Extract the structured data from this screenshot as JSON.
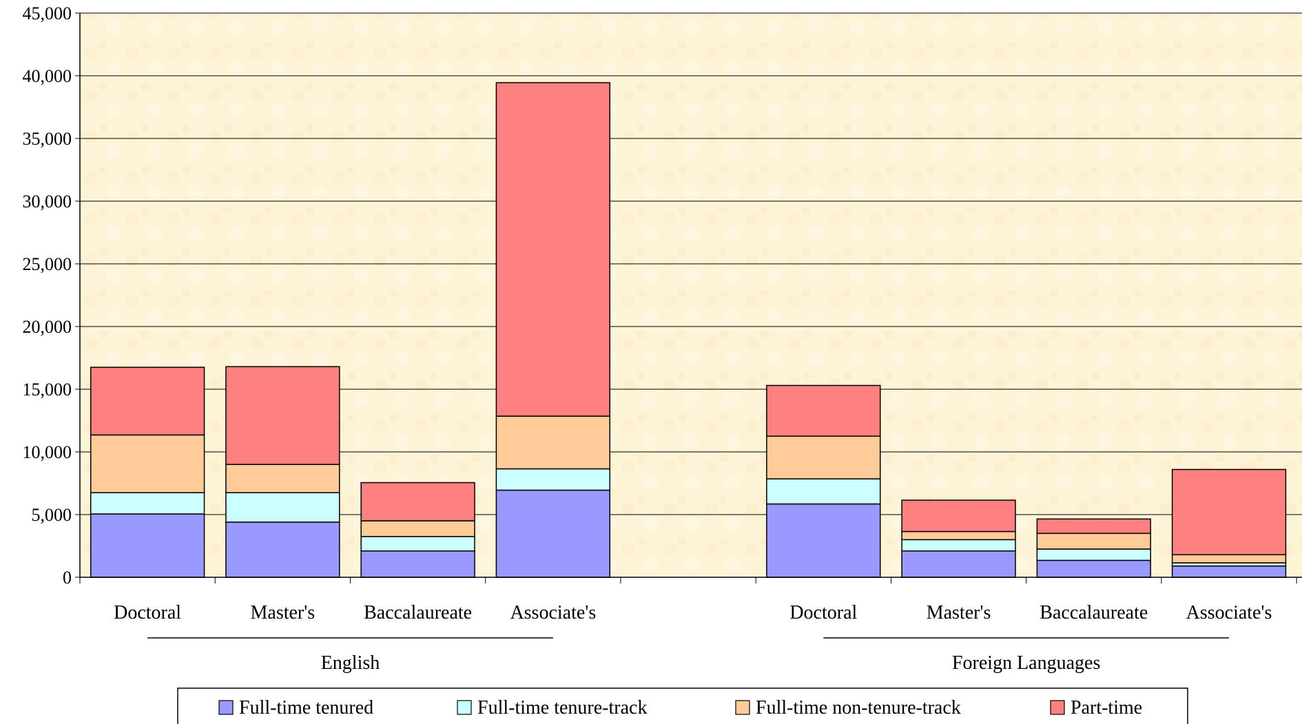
{
  "chart_data": {
    "type": "bar",
    "stacked": true,
    "categories": [
      "Doctoral",
      "Master's",
      "Baccalaureate",
      "Associate's",
      "",
      "Doctoral",
      "Master's",
      "Baccalaureate",
      "Associate's"
    ],
    "groups": [
      {
        "label": "English",
        "category_indices": [
          0,
          1,
          2,
          3
        ]
      },
      {
        "label": "Foreign Languages",
        "category_indices": [
          5,
          6,
          7,
          8
        ]
      }
    ],
    "series": [
      {
        "name": "Full-time tenured",
        "color": "#9999FF",
        "values": [
          5050,
          4400,
          2100,
          6950,
          null,
          5850,
          2100,
          1350,
          900
        ]
      },
      {
        "name": "Full-time tenure-track",
        "color": "#CCFFFF",
        "values": [
          1700,
          2350,
          1150,
          1700,
          null,
          2000,
          900,
          900,
          250
        ]
      },
      {
        "name": "Full-time non-tenure-track",
        "color": "#FFCC99",
        "values": [
          4600,
          2250,
          1250,
          4200,
          null,
          3400,
          650,
          1250,
          650
        ]
      },
      {
        "name": "Part-time",
        "color": "#FF8080",
        "values": [
          5400,
          7800,
          3050,
          26600,
          null,
          4050,
          2500,
          1150,
          6800
        ]
      }
    ],
    "yticks": [
      "0",
      "5,000",
      "10,000",
      "15,000",
      "20,000",
      "25,000",
      "30,000",
      "35,000",
      "40,000",
      "45,000"
    ],
    "ylim": [
      0,
      45000
    ],
    "grid": true,
    "legend_position": "bottom",
    "plot_background": "#FDF3D6"
  }
}
